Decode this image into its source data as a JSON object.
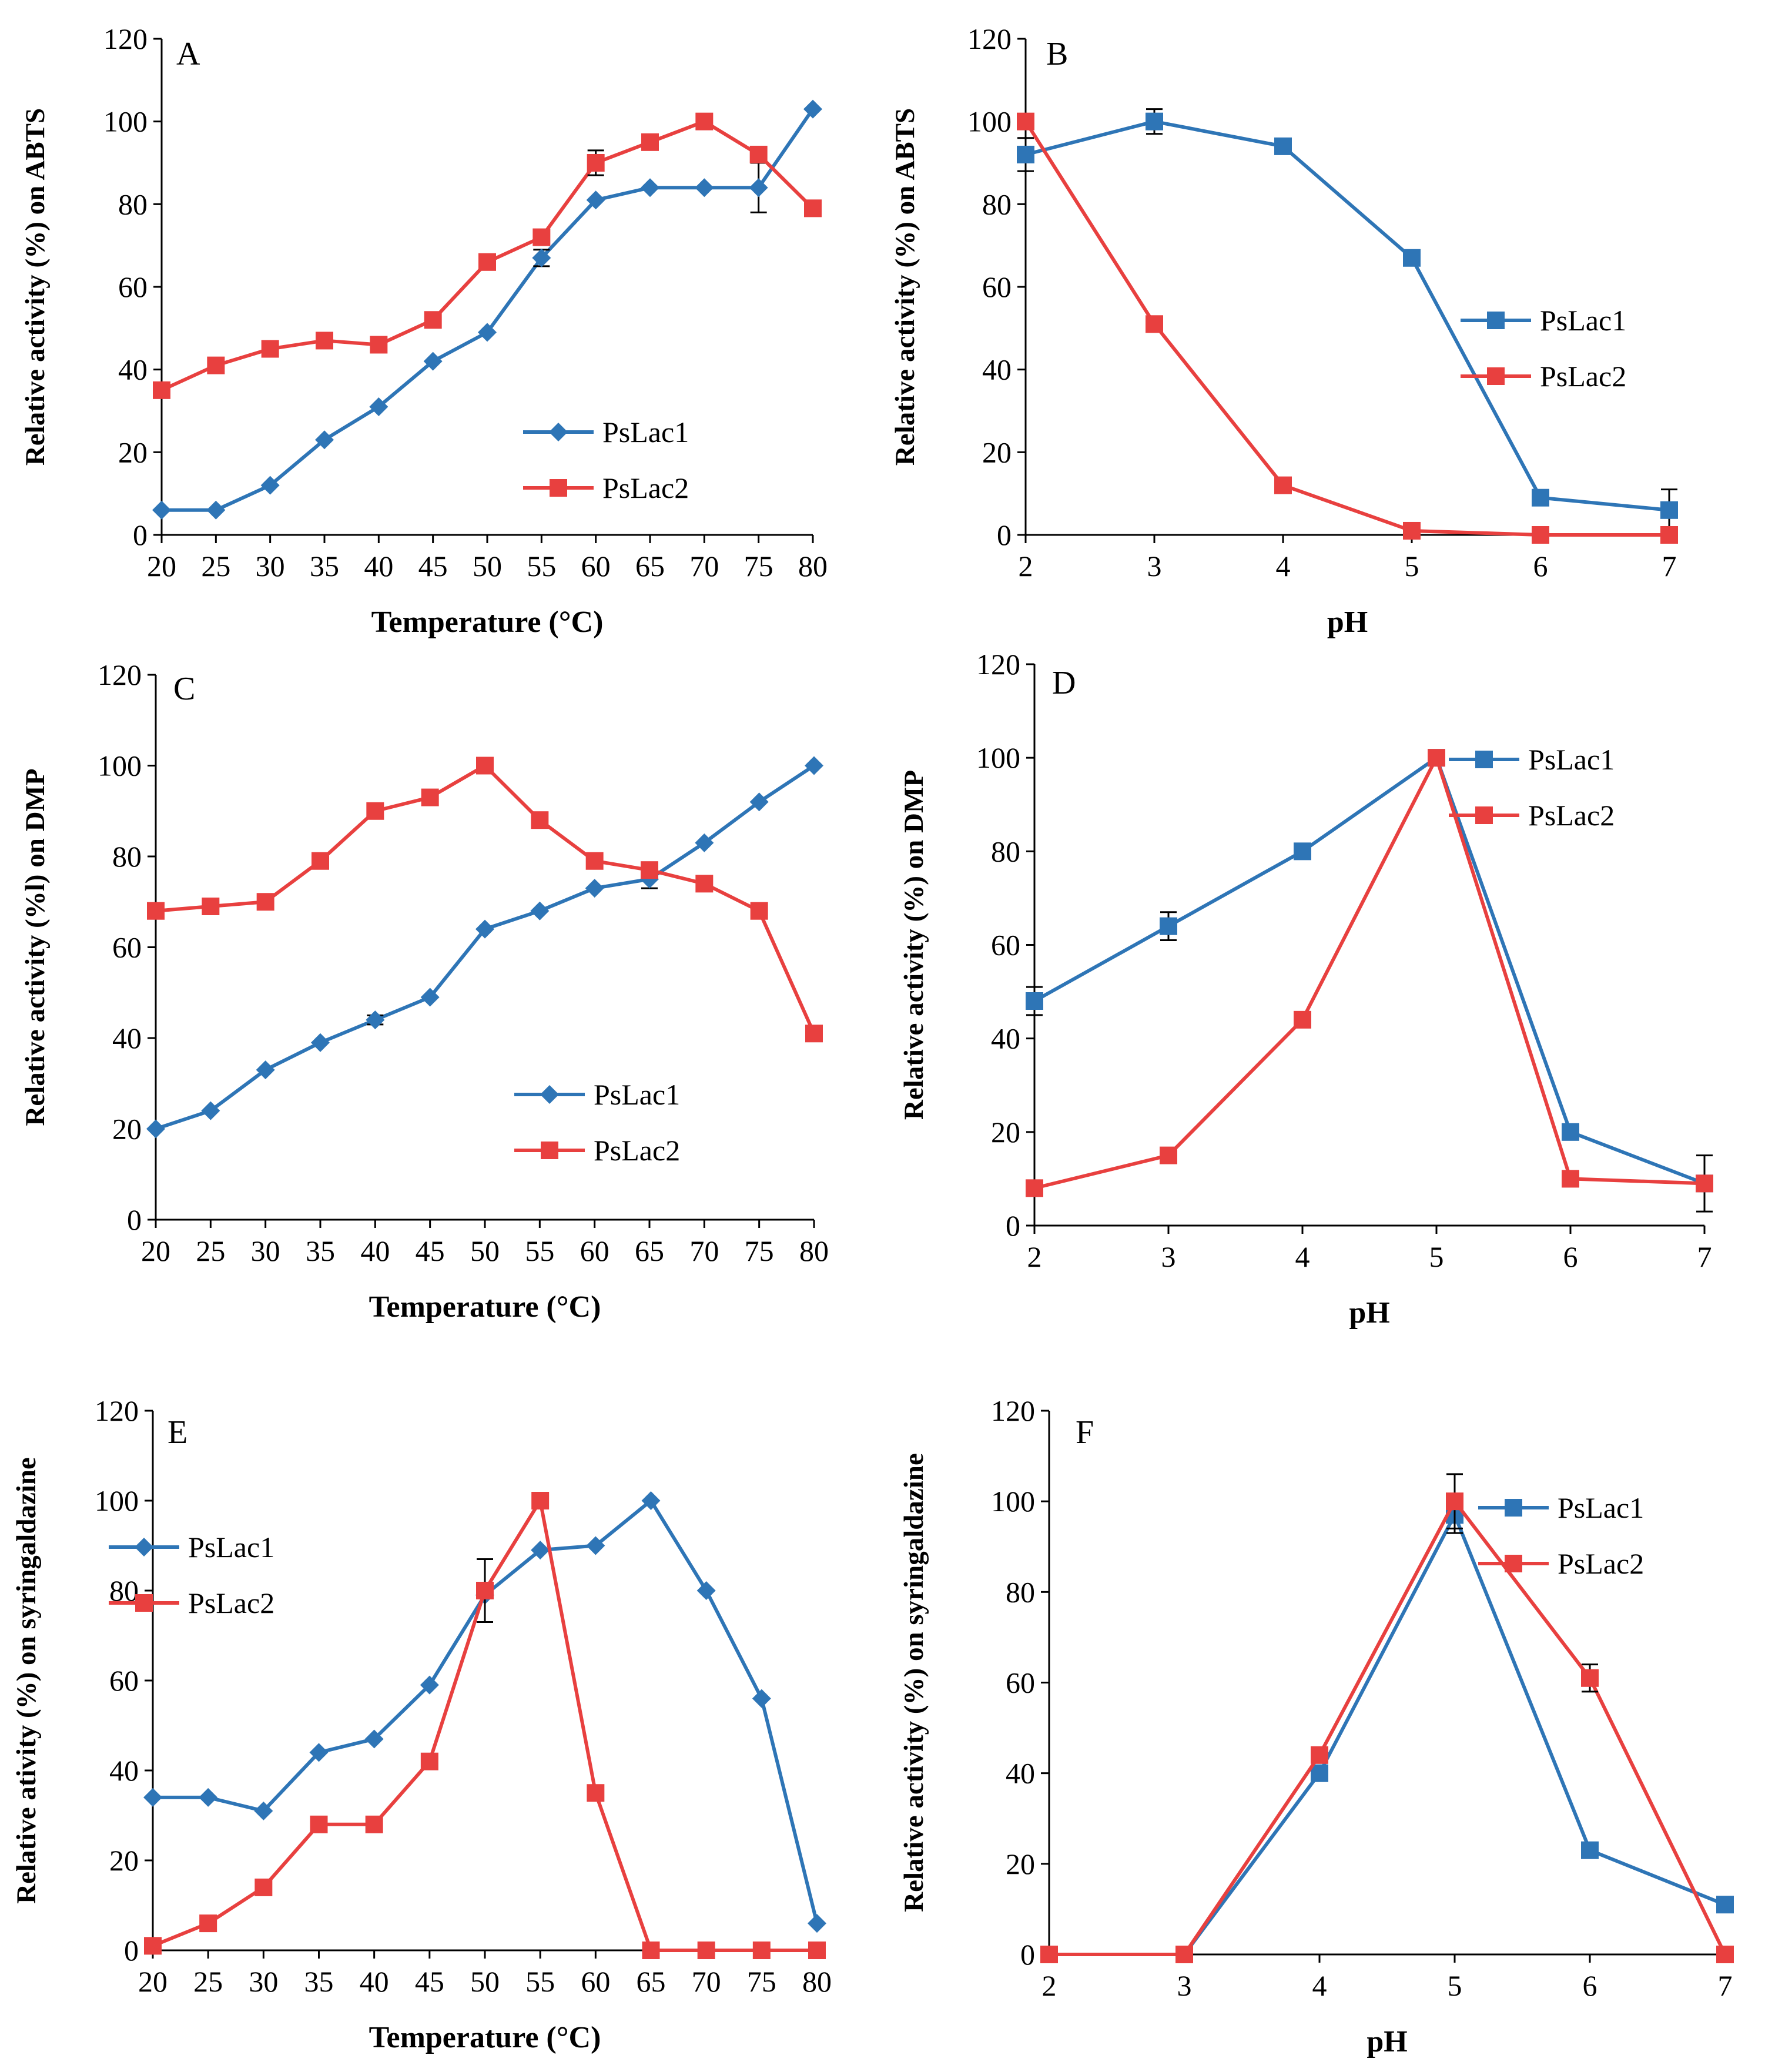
{
  "colors": {
    "PsLac1": "#2e75b6",
    "PsLac2": "#e8403f",
    "axis": "#000000",
    "baseline_gray": "#a6a6a6"
  },
  "chart_data": [
    {
      "panel": "A",
      "type": "line",
      "xlabel": "Temperature (°C)",
      "ylabel": "Relative activity (%) on ABTS",
      "x": [
        20,
        25,
        30,
        35,
        40,
        45,
        50,
        55,
        60,
        65,
        70,
        75,
        80
      ],
      "x_tick_labels": [
        "20",
        "25",
        "30",
        "35",
        "40",
        "45",
        "50",
        "55",
        "60",
        "65",
        "70",
        "75",
        "80"
      ],
      "y_tick_labels": [
        "0",
        "20",
        "40",
        "60",
        "80",
        "100",
        "120"
      ],
      "xlim": [
        20,
        80
      ],
      "ylim": [
        0,
        120
      ],
      "legend_position": "bottom-right",
      "series": [
        {
          "name": "PsLac1",
          "marker": "diamond",
          "values": [
            6,
            6,
            12,
            23,
            31,
            42,
            49,
            67,
            81,
            84,
            84,
            84,
            103
          ],
          "errors": [
            null,
            null,
            null,
            null,
            null,
            null,
            null,
            2,
            null,
            null,
            null,
            6,
            null
          ]
        },
        {
          "name": "PsLac2",
          "marker": "square",
          "values": [
            35,
            41,
            45,
            47,
            46,
            52,
            66,
            72,
            90,
            95,
            100,
            92,
            79
          ],
          "errors": [
            null,
            null,
            null,
            null,
            null,
            null,
            null,
            null,
            3,
            null,
            null,
            null,
            null
          ]
        }
      ]
    },
    {
      "panel": "B",
      "type": "line",
      "xlabel": "pH",
      "ylabel": "Relative activity (%) on ABTS",
      "x": [
        2,
        3,
        4,
        5,
        6,
        7
      ],
      "x_tick_labels": [
        "2",
        "3",
        "4",
        "5",
        "6",
        "7"
      ],
      "y_tick_labels": [
        "0",
        "20",
        "40",
        "60",
        "80",
        "100",
        "120"
      ],
      "xlim": [
        2,
        7
      ],
      "ylim": [
        0,
        120
      ],
      "legend_position": "middle-right",
      "series": [
        {
          "name": "PsLac1",
          "marker": "square",
          "values": [
            92,
            100,
            94,
            67,
            9,
            6
          ],
          "errors": [
            4,
            3,
            null,
            null,
            null,
            5
          ]
        },
        {
          "name": "PsLac2",
          "marker": "square",
          "values": [
            100,
            51,
            12,
            1,
            0,
            0
          ],
          "errors": [
            null,
            null,
            null,
            null,
            null,
            null
          ]
        }
      ]
    },
    {
      "panel": "C",
      "type": "line",
      "xlabel": "Temperature (°C)",
      "ylabel": "Relative activity (%l) on DMP",
      "x": [
        20,
        25,
        30,
        35,
        40,
        45,
        50,
        55,
        60,
        65,
        70,
        75,
        80
      ],
      "x_tick_labels": [
        "20",
        "25",
        "30",
        "35",
        "40",
        "45",
        "50",
        "55",
        "60",
        "65",
        "70",
        "75",
        "80"
      ],
      "y_tick_labels": [
        "0",
        "20",
        "40",
        "60",
        "80",
        "100",
        "120"
      ],
      "xlim": [
        20,
        80
      ],
      "ylim": [
        0,
        120
      ],
      "legend_position": "bottom-right",
      "series": [
        {
          "name": "PsLac1",
          "marker": "diamond",
          "values": [
            20,
            24,
            33,
            39,
            44,
            49,
            64,
            68,
            73,
            75,
            83,
            92,
            100
          ],
          "errors": [
            null,
            null,
            null,
            null,
            1,
            null,
            null,
            null,
            null,
            2,
            null,
            null,
            null
          ]
        },
        {
          "name": "PsLac2",
          "marker": "square",
          "values": [
            68,
            69,
            70,
            79,
            90,
            93,
            100,
            88,
            79,
            77,
            74,
            68,
            41
          ],
          "errors": [
            null,
            null,
            null,
            null,
            null,
            null,
            null,
            null,
            null,
            null,
            null,
            null,
            null
          ]
        }
      ]
    },
    {
      "panel": "D",
      "type": "line",
      "xlabel": "pH",
      "ylabel": "Relative activity (%) on DMP",
      "x": [
        2,
        3,
        4,
        5,
        6,
        7
      ],
      "x_tick_labels": [
        "2",
        "3",
        "4",
        "5",
        "6",
        "7"
      ],
      "y_tick_labels": [
        "0",
        "20",
        "40",
        "60",
        "80",
        "100",
        "120"
      ],
      "xlim": [
        2,
        7
      ],
      "ylim": [
        0,
        120
      ],
      "legend_position": "top-right",
      "series": [
        {
          "name": "PsLac1",
          "marker": "square",
          "values": [
            48,
            64,
            80,
            100,
            20,
            9
          ],
          "errors": [
            3,
            3,
            null,
            null,
            null,
            6
          ]
        },
        {
          "name": "PsLac2",
          "marker": "square",
          "values": [
            8,
            15,
            44,
            100,
            10,
            9
          ],
          "errors": [
            null,
            null,
            null,
            null,
            null,
            null
          ]
        }
      ]
    },
    {
      "panel": "E",
      "type": "line",
      "xlabel": "Temperature (°C)",
      "ylabel": "Relative ativity (%) on syringaldazine",
      "x": [
        20,
        25,
        30,
        35,
        40,
        45,
        50,
        55,
        60,
        65,
        70,
        75,
        80
      ],
      "x_tick_labels": [
        "20",
        "25",
        "30",
        "35",
        "40",
        "45",
        "50",
        "55",
        "60",
        "65",
        "70",
        "75",
        "80"
      ],
      "y_tick_labels": [
        "0",
        "20",
        "40",
        "60",
        "80",
        "100",
        "120"
      ],
      "xlim": [
        20,
        80
      ],
      "ylim": [
        0,
        120
      ],
      "legend_position": "top-left",
      "series": [
        {
          "name": "PsLac1",
          "marker": "diamond",
          "values": [
            34,
            34,
            31,
            44,
            47,
            59,
            79,
            89,
            90,
            100,
            80,
            56,
            6
          ],
          "errors": [
            null,
            null,
            null,
            null,
            null,
            null,
            null,
            null,
            null,
            null,
            null,
            null,
            null
          ]
        },
        {
          "name": "PsLac2",
          "marker": "square",
          "values": [
            1,
            6,
            14,
            28,
            28,
            42,
            80,
            100,
            35,
            0,
            0,
            0,
            0
          ],
          "errors": [
            null,
            null,
            null,
            null,
            null,
            null,
            7,
            null,
            null,
            null,
            null,
            null,
            null
          ]
        }
      ]
    },
    {
      "panel": "F",
      "type": "line",
      "xlabel": "pH",
      "ylabel": "Relative activity (%) on syringaldazine",
      "x": [
        2,
        3,
        4,
        5,
        6,
        7
      ],
      "x_tick_labels": [
        "2",
        "3",
        "4",
        "5",
        "6",
        "7"
      ],
      "y_tick_labels": [
        "0",
        "20",
        "40",
        "60",
        "80",
        "100",
        "120"
      ],
      "xlim": [
        2,
        7
      ],
      "ylim": [
        0,
        120
      ],
      "legend_position": "top-right",
      "series": [
        {
          "name": "PsLac1",
          "marker": "square",
          "values": [
            0,
            0,
            40,
            97,
            23,
            11
          ],
          "errors": [
            null,
            null,
            null,
            4,
            null,
            null
          ]
        },
        {
          "name": "PsLac2",
          "marker": "square",
          "values": [
            0,
            0,
            44,
            100,
            61,
            0
          ],
          "errors": [
            null,
            null,
            null,
            6,
            3,
            null
          ]
        }
      ]
    }
  ]
}
